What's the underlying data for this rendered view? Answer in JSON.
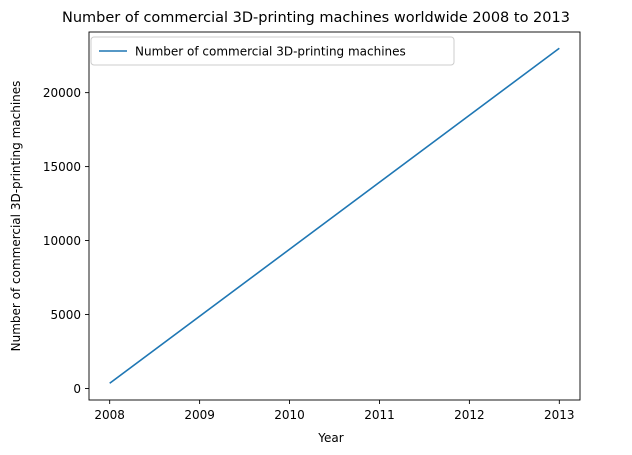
{
  "chart_data": {
    "type": "line",
    "title": "Number of commercial 3D-printing machines worldwide 2008 to 2013",
    "xlabel": "Year",
    "ylabel": "Number of commercial 3D-printing machines",
    "x": [
      2008,
      2013
    ],
    "series": [
      {
        "name": "Number of commercial 3D-printing machines",
        "values": [
          350,
          23000
        ],
        "color": "#1f77b4"
      }
    ],
    "xlim": [
      2007.77,
      2013.23
    ],
    "ylim": [
      -780,
      24100
    ],
    "xticks": [
      2008,
      2009,
      2010,
      2011,
      2012,
      2013
    ],
    "xtick_labels": [
      "2008",
      "2009",
      "2010",
      "2011",
      "2012",
      "2013"
    ],
    "yticks": [
      0,
      5000,
      10000,
      15000,
      20000
    ],
    "ytick_labels": [
      "0",
      "5000",
      "10000",
      "15000",
      "20000"
    ],
    "grid": false,
    "legend_position": "top-left"
  }
}
